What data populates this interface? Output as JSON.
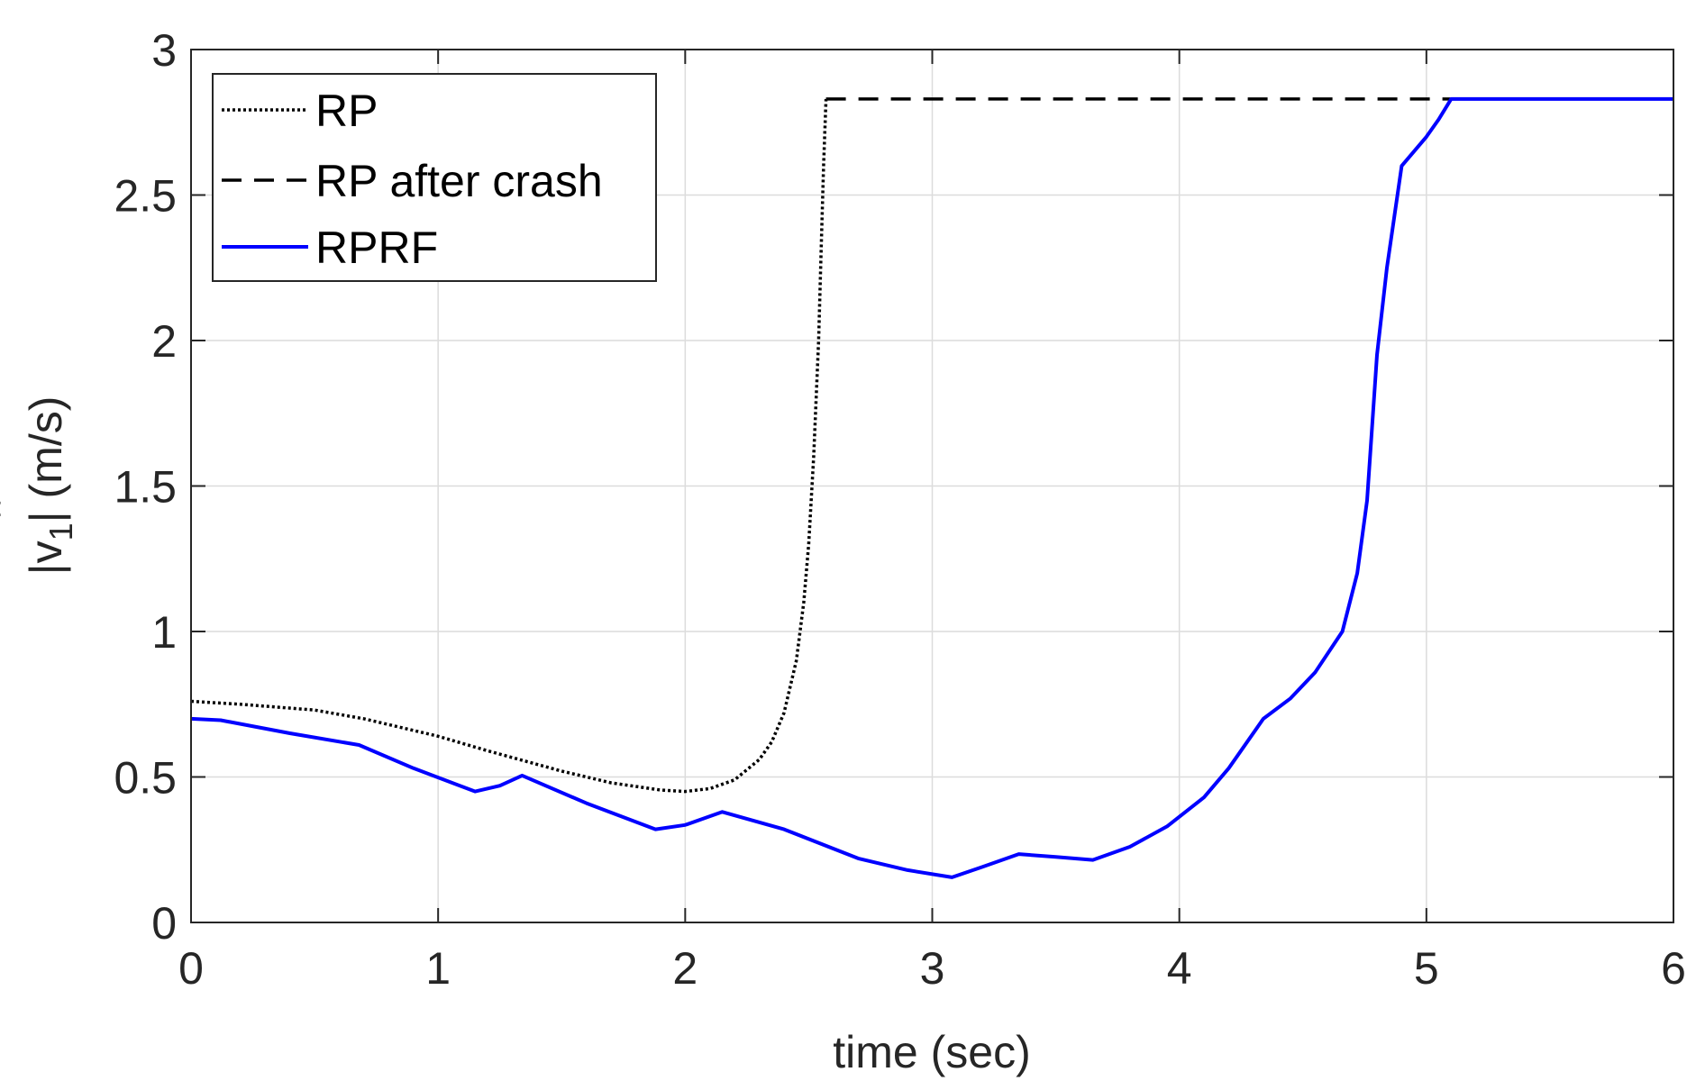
{
  "chart_data": {
    "type": "line",
    "xlabel": "time (sec)",
    "ylabel_parts": {
      "pre": "|v",
      "hat": "ˆ",
      "sub": "1",
      "post": "| (m/s)"
    },
    "xlim": [
      0,
      6
    ],
    "ylim": [
      0,
      3
    ],
    "xticks": [
      0,
      1,
      2,
      3,
      4,
      5,
      6
    ],
    "yticks": [
      0,
      0.5,
      1,
      1.5,
      2,
      2.5,
      3
    ],
    "xtick_labels": [
      "0",
      "1",
      "2",
      "3",
      "4",
      "5",
      "6"
    ],
    "ytick_labels": [
      "0",
      "0.5",
      "1",
      "1.5",
      "2",
      "2.5",
      "3"
    ],
    "grid": true,
    "legend_position": "top-left",
    "series": [
      {
        "name": "RP",
        "style": "dotted",
        "color": "#000000",
        "x": [
          0,
          0.2,
          0.5,
          0.7,
          1.0,
          1.2,
          1.5,
          1.7,
          1.9,
          2.0,
          2.1,
          2.2,
          2.3,
          2.35,
          2.4,
          2.45,
          2.48,
          2.5,
          2.52,
          2.54,
          2.55,
          2.56,
          2.57
        ],
        "y": [
          0.76,
          0.75,
          0.73,
          0.7,
          0.64,
          0.59,
          0.52,
          0.48,
          0.455,
          0.45,
          0.46,
          0.49,
          0.56,
          0.62,
          0.72,
          0.9,
          1.1,
          1.3,
          1.6,
          2.0,
          2.3,
          2.6,
          2.83
        ]
      },
      {
        "name": "RP after crash",
        "style": "dashed",
        "color": "#000000",
        "x": [
          2.57,
          5.1
        ],
        "y": [
          2.83,
          2.83
        ]
      },
      {
        "name": "RPRF",
        "style": "solid",
        "color": "#0000ff",
        "x": [
          0,
          0.12,
          0.4,
          0.68,
          0.9,
          1.15,
          1.25,
          1.34,
          1.6,
          1.88,
          2.0,
          2.15,
          2.4,
          2.7,
          2.9,
          3.08,
          3.2,
          3.35,
          3.5,
          3.65,
          3.8,
          3.95,
          4.1,
          4.2,
          4.34,
          4.45,
          4.55,
          4.66,
          4.72,
          4.76,
          4.8,
          4.84,
          4.9,
          5.0,
          5.05,
          5.1,
          5.3,
          5.5,
          6.0
        ],
        "y": [
          0.7,
          0.695,
          0.65,
          0.61,
          0.53,
          0.45,
          0.47,
          0.505,
          0.41,
          0.32,
          0.335,
          0.38,
          0.32,
          0.22,
          0.18,
          0.155,
          0.19,
          0.235,
          0.225,
          0.215,
          0.26,
          0.33,
          0.43,
          0.53,
          0.7,
          0.77,
          0.86,
          1.0,
          1.2,
          1.45,
          1.95,
          2.25,
          2.6,
          2.7,
          2.76,
          2.83,
          2.83,
          2.83,
          2.83
        ]
      }
    ]
  }
}
